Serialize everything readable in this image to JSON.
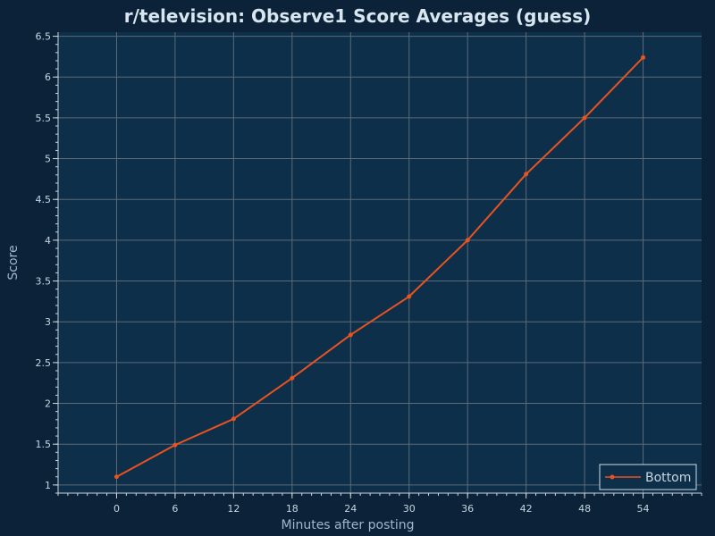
{
  "colors": {
    "background": "#0b2239",
    "plot_background": "#0d2f4a",
    "grid": "#5b6b78",
    "series": "#e8531f",
    "text": "#c9d6e0"
  },
  "chart_data": {
    "type": "line",
    "title": "r/television: Observe1 Score Averages (guess)",
    "xlabel": "Minutes after posting",
    "ylabel": "Score",
    "xlim": [
      -6,
      60
    ],
    "ylim": [
      0.9,
      6.55
    ],
    "x_ticks": [
      0,
      6,
      12,
      18,
      24,
      30,
      36,
      42,
      48,
      54
    ],
    "y_ticks": [
      1,
      1.5,
      2,
      2.5,
      3,
      3.5,
      4,
      4.5,
      5,
      5.5,
      6,
      6.5
    ],
    "grid": true,
    "legend_position": "bottom-right",
    "series": [
      {
        "name": "Bottom",
        "x": [
          0,
          6,
          12,
          18,
          24,
          30,
          36,
          42,
          48,
          54
        ],
        "y": [
          1.1,
          1.49,
          1.81,
          2.31,
          2.84,
          3.31,
          4.0,
          4.81,
          5.5,
          6.24
        ]
      }
    ]
  }
}
